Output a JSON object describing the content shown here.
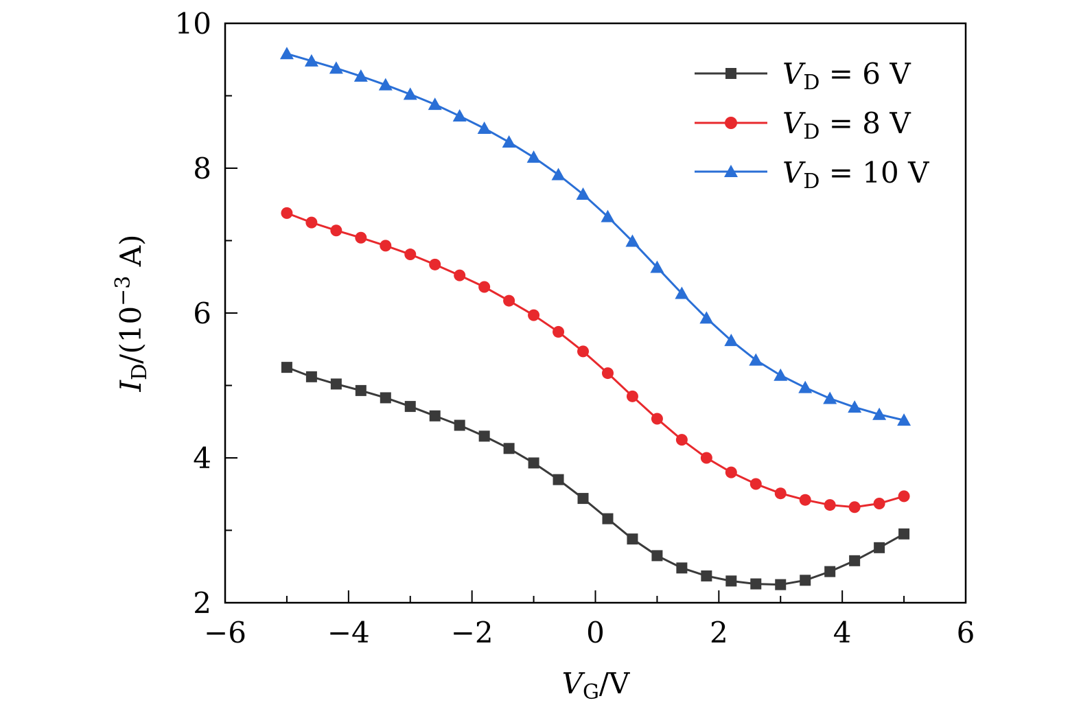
{
  "chart_data": {
    "type": "line",
    "title": "",
    "xlabel": {
      "main": "V",
      "sub": "G",
      "rest": "/V"
    },
    "ylabel": {
      "main": "I",
      "sub": "D",
      "rest": "/(10",
      "sup": "−3",
      "unit": " A)"
    },
    "xlim": [
      -6,
      6
    ],
    "ylim": [
      2,
      10
    ],
    "xticks": [
      -6,
      -4,
      -2,
      0,
      2,
      4,
      6
    ],
    "xtick_labels": [
      "−6",
      "−4",
      "−2",
      "0",
      "2",
      "4",
      "6"
    ],
    "yticks": [
      2,
      4,
      6,
      8,
      10
    ],
    "ytick_labels": [
      "2",
      "4",
      "6",
      "8",
      "10"
    ],
    "legend_position": "top-right",
    "series": [
      {
        "name": "V_D = 6 V",
        "legend": {
          "main": "V",
          "sub": "D",
          "rest": " = 6  V"
        },
        "color": "#3a3a3a",
        "marker": "square",
        "points": [
          [
            -5.0,
            5.25
          ],
          [
            -4.6,
            5.12
          ],
          [
            -4.2,
            5.02
          ],
          [
            -3.8,
            4.93
          ],
          [
            -3.4,
            4.83
          ],
          [
            -3.0,
            4.71
          ],
          [
            -2.6,
            4.58
          ],
          [
            -2.2,
            4.45
          ],
          [
            -1.8,
            4.3
          ],
          [
            -1.4,
            4.13
          ],
          [
            -1.0,
            3.93
          ],
          [
            -0.6,
            3.7
          ],
          [
            -0.2,
            3.44
          ],
          [
            0.2,
            3.16
          ],
          [
            0.6,
            2.88
          ],
          [
            1.0,
            2.65
          ],
          [
            1.4,
            2.48
          ],
          [
            1.8,
            2.37
          ],
          [
            2.2,
            2.3
          ],
          [
            2.6,
            2.26
          ],
          [
            3.0,
            2.25
          ],
          [
            3.4,
            2.31
          ],
          [
            3.8,
            2.43
          ],
          [
            4.2,
            2.58
          ],
          [
            4.6,
            2.76
          ],
          [
            5.0,
            2.95
          ]
        ]
      },
      {
        "name": "V_D = 8 V",
        "legend": {
          "main": "V",
          "sub": "D",
          "rest": " = 8  V"
        },
        "color": "#e8292d",
        "marker": "circle",
        "points": [
          [
            -5.0,
            7.38
          ],
          [
            -4.6,
            7.25
          ],
          [
            -4.2,
            7.14
          ],
          [
            -3.8,
            7.04
          ],
          [
            -3.4,
            6.93
          ],
          [
            -3.0,
            6.81
          ],
          [
            -2.6,
            6.67
          ],
          [
            -2.2,
            6.52
          ],
          [
            -1.8,
            6.36
          ],
          [
            -1.4,
            6.17
          ],
          [
            -1.0,
            5.97
          ],
          [
            -0.6,
            5.74
          ],
          [
            -0.2,
            5.47
          ],
          [
            0.2,
            5.17
          ],
          [
            0.6,
            4.85
          ],
          [
            1.0,
            4.54
          ],
          [
            1.4,
            4.25
          ],
          [
            1.8,
            4.0
          ],
          [
            2.2,
            3.8
          ],
          [
            2.6,
            3.64
          ],
          [
            3.0,
            3.51
          ],
          [
            3.4,
            3.42
          ],
          [
            3.8,
            3.35
          ],
          [
            4.2,
            3.32
          ],
          [
            4.6,
            3.37
          ],
          [
            5.0,
            3.47
          ]
        ]
      },
      {
        "name": "V_D = 10 V",
        "legend": {
          "main": "V",
          "sub": "D",
          "rest": " = 10  V"
        },
        "color": "#2a6fd6",
        "marker": "triangle",
        "points": [
          [
            -5.0,
            9.58
          ],
          [
            -4.6,
            9.48
          ],
          [
            -4.2,
            9.38
          ],
          [
            -3.8,
            9.27
          ],
          [
            -3.4,
            9.15
          ],
          [
            -3.0,
            9.02
          ],
          [
            -2.6,
            8.88
          ],
          [
            -2.2,
            8.72
          ],
          [
            -1.8,
            8.55
          ],
          [
            -1.4,
            8.36
          ],
          [
            -1.0,
            8.15
          ],
          [
            -0.6,
            7.91
          ],
          [
            -0.2,
            7.64
          ],
          [
            0.2,
            7.33
          ],
          [
            0.6,
            6.99
          ],
          [
            1.0,
            6.63
          ],
          [
            1.4,
            6.27
          ],
          [
            1.8,
            5.93
          ],
          [
            2.2,
            5.62
          ],
          [
            2.6,
            5.35
          ],
          [
            3.0,
            5.14
          ],
          [
            3.4,
            4.97
          ],
          [
            3.8,
            4.82
          ],
          [
            4.2,
            4.7
          ],
          [
            4.6,
            4.6
          ],
          [
            5.0,
            4.52
          ]
        ]
      }
    ]
  }
}
